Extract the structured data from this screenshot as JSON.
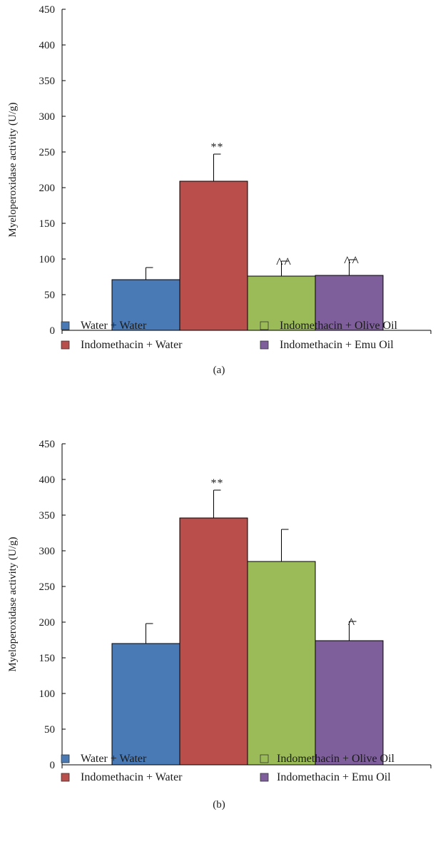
{
  "chart_data": [
    {
      "type": "bar",
      "panel_label": "(a)",
      "ylabel": "Myeloperoxidase activity (U/g)",
      "ylim": [
        0,
        450
      ],
      "yticks": [
        0,
        50,
        100,
        150,
        200,
        250,
        300,
        350,
        400,
        450
      ],
      "series": [
        {
          "name": "Water + Water",
          "value": 71,
          "error": 17,
          "annotation": "",
          "color": "#4a7ab5"
        },
        {
          "name": "Indomethacin + Water",
          "value": 209,
          "error": 38,
          "annotation": "**",
          "color": "#b94e4a"
        },
        {
          "name": "Indomethacin + Olive Oil",
          "value": 76,
          "error": 21,
          "annotation": "^^",
          "color": "#9bbb59"
        },
        {
          "name": "Indomethacin + Emu Oil",
          "value": 77,
          "error": 22,
          "annotation": "^^",
          "color": "#7e5f9c"
        }
      ]
    },
    {
      "type": "bar",
      "panel_label": "(b)",
      "ylabel": "Myeloperoxidase activity (U/g)",
      "ylim": [
        0,
        450
      ],
      "yticks": [
        0,
        50,
        100,
        150,
        200,
        250,
        300,
        350,
        400,
        450
      ],
      "series": [
        {
          "name": "Water + Water",
          "value": 170,
          "error": 28,
          "annotation": "",
          "color": "#4a7ab5"
        },
        {
          "name": "Indomethacin + Water",
          "value": 346,
          "error": 39,
          "annotation": "**",
          "color": "#b94e4a"
        },
        {
          "name": "Indomethacin + Olive Oil",
          "value": 285,
          "error": 45,
          "annotation": "",
          "color": "#9bbb59"
        },
        {
          "name": "Indomethacin + Emu Oil",
          "value": 174,
          "error": 27,
          "annotation": "^",
          "color": "#7e5f9c"
        }
      ]
    }
  ]
}
